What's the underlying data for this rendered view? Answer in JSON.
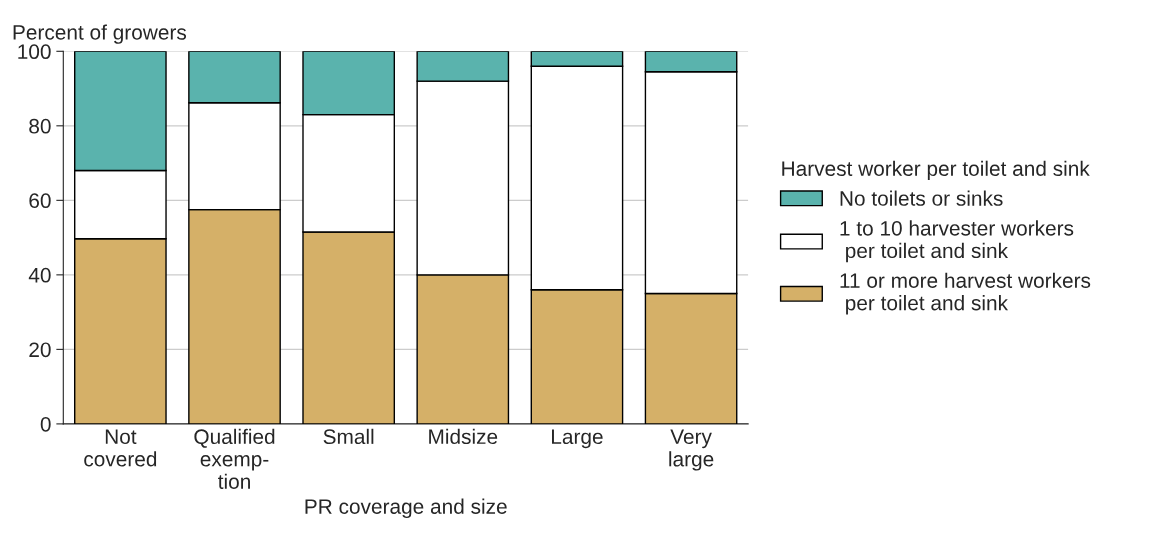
{
  "chart_data": {
    "type": "bar",
    "stacked": true,
    "ylabel": "Percent of growers",
    "xlabel": "PR coverage and size",
    "legend_title": "Harvest worker per toilet and sink",
    "categories": [
      "Not\ncovered",
      "Qualified\nexemp-\ntion",
      "Small",
      "Midsize",
      "Large",
      "Very\nlarge"
    ],
    "series": [
      {
        "name": "11 or more harvest workers\n per toilet and sink",
        "color": "#d5b068",
        "values": [
          49.7,
          57.5,
          51.5,
          40,
          36,
          35
        ]
      },
      {
        "name": "1 to 10 harvester workers\n per toilet and sink",
        "color": "#ffffff",
        "values": [
          18.3,
          28.7,
          31.5,
          52,
          60,
          59.5
        ]
      },
      {
        "name": "No toilets or sinks",
        "color": "#5ab3ad",
        "values": [
          32,
          13.8,
          17,
          8,
          4,
          5.5
        ]
      }
    ],
    "ylim": [
      0,
      100
    ],
    "yticks": [
      0,
      20,
      40,
      60,
      80,
      100
    ],
    "grid": "y",
    "legend": "right"
  }
}
